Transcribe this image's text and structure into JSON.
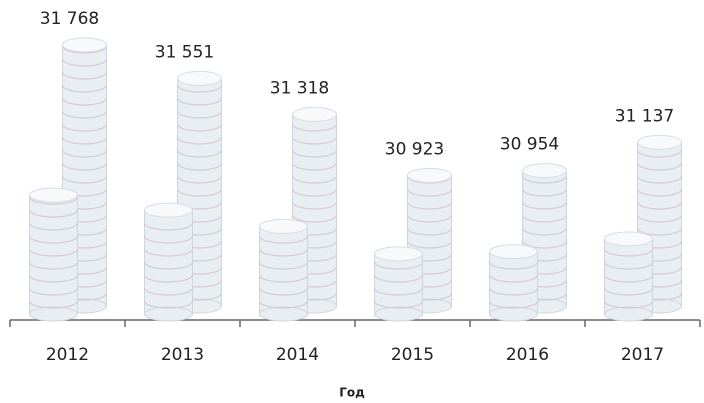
{
  "chart_data": {
    "type": "bar",
    "x_label": "Год",
    "categories": [
      "2012",
      "2013",
      "2014",
      "2015",
      "2016",
      "2017"
    ],
    "values": [
      31768,
      31551,
      31318,
      30923,
      30954,
      31137
    ],
    "value_labels": [
      "31 768",
      "31 551",
      "31 318",
      "30 923",
      "30 954",
      "31 137"
    ],
    "ylim": [
      30000,
      32000
    ],
    "color": "#e9eef3"
  }
}
